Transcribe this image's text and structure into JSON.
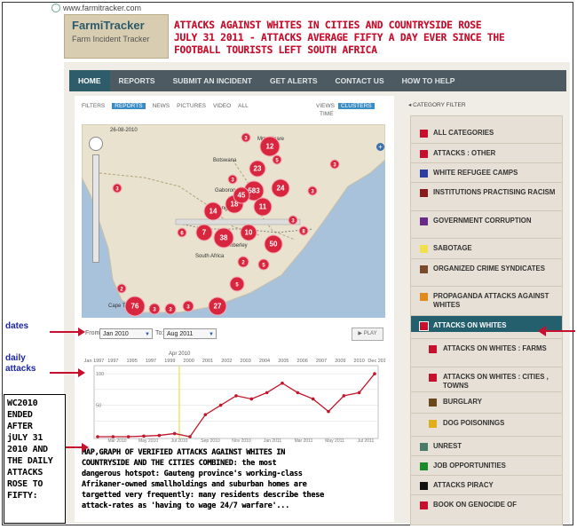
{
  "browser": {
    "url": "www.farmitracker.com"
  },
  "logo": {
    "name": "FarmiTracker",
    "subtitle": "Farm Incident Tracker"
  },
  "headline": {
    "lines": [
      "ATTACKS AGAINST WHITES IN CITIES AND COUNTRYSIDE ROSE",
      "JULY 31 2011 - ATTACKS AVERAGE FIFTY A DAY EVER SINCE THE",
      "FOOTBALL TOURISTS LEFT SOUTH AFRICA"
    ],
    "color": "#c8102e"
  },
  "nav": {
    "items": [
      "HOME",
      "REPORTS",
      "SUBMIT AN INCIDENT",
      "GET ALERTS",
      "CONTACT US",
      "HOW TO HELP"
    ],
    "active": "HOME"
  },
  "filters": {
    "label": "FILTERS",
    "items": [
      "REPORTS",
      "NEWS",
      "PICTURES",
      "VIDEO",
      "ALL"
    ],
    "active": "REPORTS"
  },
  "views": {
    "label": "VIEWS",
    "items": [
      "CLUSTERS"
    ],
    "time_label": "TIME"
  },
  "map": {
    "date_label": "26-08-2010",
    "place_labels": [
      "Mmadinare",
      "Botswana",
      "Gaborone",
      "Mafikeng",
      "South Africa",
      "Cape Town",
      "Kimberley"
    ],
    "clusters": [
      "12",
      "3",
      "3",
      "23",
      "5",
      "24",
      "18",
      "583",
      "45",
      "11",
      "3",
      "14",
      "7",
      "6",
      "38",
      "10",
      "3",
      "50",
      "5",
      "3",
      "8",
      "2",
      "5",
      "76",
      "27",
      "2",
      "3",
      "3",
      "3",
      "3"
    ]
  },
  "date_range": {
    "from_label": "From:",
    "from_value": "Jan 2010",
    "to_label": "To:",
    "to_value": "Aug 2011",
    "play_label": "PLAY"
  },
  "timeline": {
    "year_ticks": [
      "Jan 1997",
      "1997",
      "1995",
      "1997",
      "1999",
      "2000",
      "2001",
      "2002",
      "2003",
      "2004",
      "2005",
      "2006",
      "2007",
      "2009",
      "2010",
      "Dec 2011"
    ],
    "y_ticks": [
      "100",
      "50"
    ],
    "x_ticks": [
      "Mar 2010",
      "May 2010",
      "Jul 2010",
      "Sep 2010",
      "Nov 2010",
      "Jan 2011",
      "Mar 2011",
      "May 2011",
      "Jul 2011"
    ],
    "marker": "Apr 2010"
  },
  "chart_data": {
    "type": "line",
    "x": [
      "Jan 2010",
      "Feb 2010",
      "Mar 2010",
      "Apr 2010",
      "May 2010",
      "Jun 2010",
      "Jul 2010",
      "Aug 2010",
      "Sep 2010",
      "Oct 2010",
      "Nov 2010",
      "Dec 2010",
      "Jan 2011",
      "Feb 2011",
      "Mar 2011",
      "May 2011",
      "Jun 2011",
      "Jul 2011",
      "Aug 2011"
    ],
    "series": [
      {
        "values": [
          0,
          0,
          0,
          1,
          2,
          5,
          0,
          35,
          50,
          65,
          60,
          70,
          85,
          70,
          60,
          40,
          65,
          70,
          100
        ]
      }
    ],
    "xlabel": "",
    "ylabel": "",
    "ylim": [
      0,
      110
    ],
    "color": "#c0172c",
    "grid": true
  },
  "caption": {
    "lines": [
      "MAP,GRAPH OF VERIFIED ATTACKS AGAINST WHITES IN",
      "COUNTRYSIDE AND THE CITIES COMBINED: the most",
      "dangerous hotspot: Gauteng province's working-class",
      "Afrikaner-owned smallholdings and suburban homes are",
      "targetted very frequently: many residents describe these",
      "attack-rates as 'having to wage 24/7 warfare'..."
    ]
  },
  "category_filter": {
    "title": "CATEGORY FILTER",
    "items": [
      {
        "label": "ALL CATEGORIES",
        "color": "#c8102e"
      },
      {
        "label": "ATTACKS : OTHER",
        "color": "#c8102e"
      },
      {
        "label": "WHITE REFUGEE CAMPS",
        "color": "#2a3fa0"
      },
      {
        "label": "INSTITUTIONS PRACTISING RACISM",
        "color": "#8b1a1a"
      },
      {
        "label": "GOVERNMENT CORRUPTION",
        "color": "#6a2a8a"
      },
      {
        "label": "SABOTAGE",
        "color": "#f1e04a"
      },
      {
        "label": "ORGANIZED CRIME SYNDICATES",
        "color": "#7a4a2a"
      },
      {
        "label": "PROPAGANDA ATTACKS AGAINST WHITES",
        "color": "#e08a1a"
      },
      {
        "label": "ATTACKS ON WHITES",
        "color": "#c8102e"
      },
      {
        "label": "ATTACKS ON WHITES : FARMS",
        "color": "#c8102e"
      },
      {
        "label": "ATTACKS ON WHITES : CITIES , TOWNS",
        "color": "#c8102e"
      },
      {
        "label": "BURGLARY",
        "color": "#6a4a1a"
      },
      {
        "label": "DOG POISONINGS",
        "color": "#e0b01a"
      },
      {
        "label": "UNREST",
        "color": "#4a7a6a"
      },
      {
        "label": "JOB OPPORTUNITIES",
        "color": "#1a8a2a"
      },
      {
        "label": "ATTACKS PIRACY",
        "color": "#111111"
      },
      {
        "label": "BOOK ON GENOCIDE OF",
        "color": "#c8102e"
      }
    ]
  },
  "annotations": {
    "dates": "dates",
    "daily_attacks": "daily attacks",
    "wc_note": [
      "WC2010",
      "ENDED",
      "AFTER",
      "jULY 31",
      "2010 AND",
      "THE DAILY",
      "ATTACKS",
      "ROSE TO",
      "FIFTY:"
    ]
  }
}
